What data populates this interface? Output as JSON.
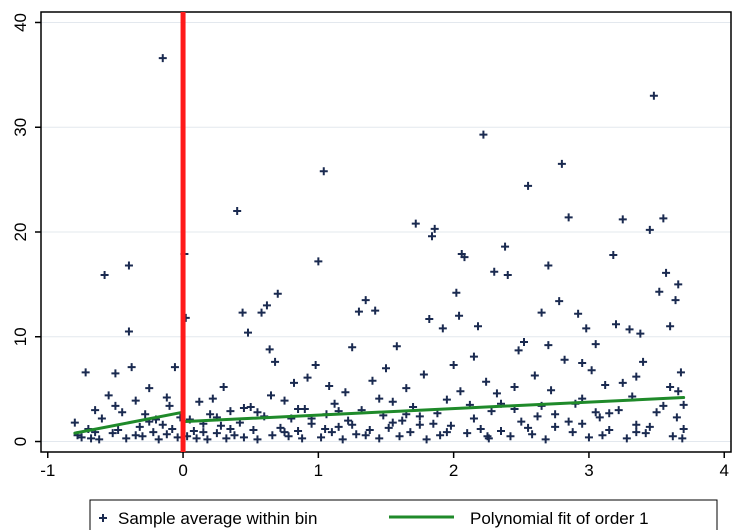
{
  "chart_data": {
    "type": "scatter",
    "title": "",
    "xlabel": "",
    "ylabel": "",
    "xlim": [
      -1.05,
      4.05
    ],
    "ylim": [
      -1,
      41
    ],
    "xticks": [
      -1,
      0,
      1,
      2,
      3,
      4
    ],
    "yticks": [
      0,
      10,
      20,
      30,
      40
    ],
    "xtick_labels": [
      "-1",
      "0",
      "1",
      "2",
      "3",
      "4"
    ],
    "ytick_labels": [
      "0",
      "10",
      "20",
      "30",
      "40"
    ],
    "grid": "horizontal",
    "cutoff": {
      "x": 0,
      "color": "#ff1a1a"
    },
    "series": [
      {
        "name": "Sample average within bin",
        "kind": "scatter",
        "marker": "plus",
        "color": "#1a2a50",
        "points": [
          [
            -0.8,
            1.8
          ],
          [
            -0.78,
            0.6
          ],
          [
            -0.75,
            0.4
          ],
          [
            -0.72,
            6.6
          ],
          [
            -0.7,
            1.2
          ],
          [
            -0.68,
            0.3
          ],
          [
            -0.65,
            3.0
          ],
          [
            -0.62,
            0.2
          ],
          [
            -0.6,
            2.2
          ],
          [
            -0.58,
            15.9
          ],
          [
            -0.55,
            4.4
          ],
          [
            -0.52,
            0.8
          ],
          [
            -0.5,
            6.5
          ],
          [
            -0.48,
            1.1
          ],
          [
            -0.45,
            2.8
          ],
          [
            -0.42,
            0.3
          ],
          [
            -0.4,
            16.8
          ],
          [
            -0.38,
            7.1
          ],
          [
            -0.35,
            3.9
          ],
          [
            -0.32,
            1.4
          ],
          [
            -0.4,
            10.5
          ],
          [
            -0.3,
            0.5
          ],
          [
            -0.28,
            2.6
          ],
          [
            -0.25,
            5.1
          ],
          [
            -0.22,
            0.9
          ],
          [
            -0.2,
            2.1
          ],
          [
            -0.18,
            0.2
          ],
          [
            -0.15,
            1.6
          ],
          [
            -0.12,
            0.7
          ],
          [
            -0.1,
            3.4
          ],
          [
            -0.08,
            1.2
          ],
          [
            -0.06,
            7.1
          ],
          [
            -0.04,
            0.4
          ],
          [
            -0.02,
            2.3
          ],
          [
            -0.15,
            36.6
          ],
          [
            -0.5,
            3.4
          ],
          [
            -0.65,
            0.9
          ],
          [
            -0.35,
            0.6
          ],
          [
            -0.25,
            1.9
          ],
          [
            -0.12,
            4.2
          ],
          [
            0.01,
            17.9
          ],
          [
            0.02,
            11.8
          ],
          [
            0.03,
            0.5
          ],
          [
            0.05,
            2.1
          ],
          [
            0.08,
            1.0
          ],
          [
            0.1,
            0.3
          ],
          [
            0.12,
            3.8
          ],
          [
            0.15,
            1.7
          ],
          [
            0.18,
            0.2
          ],
          [
            0.2,
            2.6
          ],
          [
            0.22,
            4.1
          ],
          [
            0.25,
            0.8
          ],
          [
            0.28,
            1.5
          ],
          [
            0.3,
            5.2
          ],
          [
            0.32,
            0.3
          ],
          [
            0.35,
            2.9
          ],
          [
            0.38,
            0.6
          ],
          [
            0.4,
            22.0
          ],
          [
            0.42,
            1.8
          ],
          [
            0.44,
            12.3
          ],
          [
            0.45,
            0.4
          ],
          [
            0.48,
            10.4
          ],
          [
            0.5,
            3.3
          ],
          [
            0.52,
            1.1
          ],
          [
            0.55,
            0.2
          ],
          [
            0.58,
            12.3
          ],
          [
            0.6,
            2.4
          ],
          [
            0.62,
            13.0
          ],
          [
            0.64,
            8.8
          ],
          [
            0.66,
            0.6
          ],
          [
            0.68,
            7.6
          ],
          [
            0.7,
            14.1
          ],
          [
            0.72,
            1.3
          ],
          [
            0.75,
            3.9
          ],
          [
            0.78,
            0.5
          ],
          [
            0.8,
            2.2
          ],
          [
            0.82,
            5.6
          ],
          [
            0.85,
            1.0
          ],
          [
            0.88,
            0.3
          ],
          [
            0.9,
            3.1
          ],
          [
            0.92,
            6.1
          ],
          [
            0.95,
            1.7
          ],
          [
            0.98,
            7.3
          ],
          [
            1.0,
            17.2
          ],
          [
            1.02,
            0.4
          ],
          [
            1.04,
            25.8
          ],
          [
            1.06,
            2.6
          ],
          [
            1.08,
            5.3
          ],
          [
            1.1,
            0.9
          ],
          [
            1.12,
            3.6
          ],
          [
            1.15,
            1.4
          ],
          [
            1.18,
            0.2
          ],
          [
            1.2,
            4.7
          ],
          [
            1.22,
            2.0
          ],
          [
            1.25,
            9.0
          ],
          [
            1.28,
            0.7
          ],
          [
            1.3,
            12.4
          ],
          [
            1.32,
            3.0
          ],
          [
            1.35,
            13.5
          ],
          [
            1.38,
            1.1
          ],
          [
            1.4,
            5.8
          ],
          [
            1.42,
            12.5
          ],
          [
            1.45,
            0.3
          ],
          [
            1.48,
            2.5
          ],
          [
            1.5,
            7.0
          ],
          [
            1.52,
            1.3
          ],
          [
            1.55,
            3.8
          ],
          [
            1.58,
            9.1
          ],
          [
            1.6,
            0.5
          ],
          [
            1.62,
            2.0
          ],
          [
            1.65,
            5.1
          ],
          [
            1.68,
            0.9
          ],
          [
            1.7,
            3.3
          ],
          [
            1.72,
            20.8
          ],
          [
            1.75,
            1.6
          ],
          [
            1.78,
            6.4
          ],
          [
            1.8,
            0.2
          ],
          [
            1.82,
            11.7
          ],
          [
            1.84,
            19.6
          ],
          [
            1.86,
            20.3
          ],
          [
            1.88,
            2.7
          ],
          [
            1.9,
            0.6
          ],
          [
            1.92,
            10.8
          ],
          [
            1.95,
            4.0
          ],
          [
            1.98,
            1.5
          ],
          [
            2.0,
            7.3
          ],
          [
            2.02,
            14.2
          ],
          [
            2.04,
            12.0
          ],
          [
            2.06,
            17.9
          ],
          [
            2.08,
            17.6
          ],
          [
            2.1,
            0.8
          ],
          [
            2.12,
            3.5
          ],
          [
            2.15,
            8.1
          ],
          [
            2.18,
            11.0
          ],
          [
            2.2,
            1.2
          ],
          [
            2.22,
            29.3
          ],
          [
            2.24,
            5.7
          ],
          [
            2.26,
            0.3
          ],
          [
            2.28,
            2.9
          ],
          [
            2.3,
            16.2
          ],
          [
            2.32,
            4.6
          ],
          [
            2.35,
            1.0
          ],
          [
            2.38,
            18.6
          ],
          [
            2.4,
            15.9
          ],
          [
            2.42,
            0.5
          ],
          [
            2.45,
            3.1
          ],
          [
            2.48,
            8.7
          ],
          [
            2.5,
            1.9
          ],
          [
            2.52,
            9.5
          ],
          [
            2.55,
            24.4
          ],
          [
            2.58,
            0.7
          ],
          [
            2.6,
            6.3
          ],
          [
            2.62,
            2.4
          ],
          [
            2.65,
            12.3
          ],
          [
            2.68,
            0.2
          ],
          [
            2.7,
            16.8
          ],
          [
            2.72,
            4.9
          ],
          [
            2.75,
            1.4
          ],
          [
            2.78,
            13.4
          ],
          [
            2.8,
            26.5
          ],
          [
            2.82,
            7.8
          ],
          [
            2.85,
            21.4
          ],
          [
            2.88,
            0.9
          ],
          [
            2.9,
            3.6
          ],
          [
            2.92,
            12.2
          ],
          [
            2.95,
            1.7
          ],
          [
            2.98,
            10.8
          ],
          [
            3.0,
            0.4
          ],
          [
            3.02,
            6.8
          ],
          [
            3.05,
            9.3
          ],
          [
            3.08,
            2.3
          ],
          [
            3.1,
            0.6
          ],
          [
            3.12,
            5.4
          ],
          [
            3.15,
            1.1
          ],
          [
            3.18,
            17.8
          ],
          [
            3.2,
            11.2
          ],
          [
            3.22,
            3.0
          ],
          [
            3.25,
            21.2
          ],
          [
            3.28,
            0.3
          ],
          [
            3.3,
            10.7
          ],
          [
            3.32,
            4.3
          ],
          [
            3.35,
            1.6
          ],
          [
            3.38,
            10.3
          ],
          [
            3.4,
            7.6
          ],
          [
            3.42,
            0.8
          ],
          [
            3.45,
            20.2
          ],
          [
            3.48,
            33.0
          ],
          [
            3.5,
            2.8
          ],
          [
            3.52,
            14.3
          ],
          [
            3.55,
            21.3
          ],
          [
            3.57,
            16.1
          ],
          [
            3.6,
            11.0
          ],
          [
            3.62,
            0.5
          ],
          [
            3.64,
            13.5
          ],
          [
            3.66,
            15.0
          ],
          [
            3.68,
            6.6
          ],
          [
            3.7,
            3.5
          ],
          [
            3.7,
            1.2
          ],
          [
            3.69,
            0.3
          ],
          [
            3.66,
            4.8
          ],
          [
            0.15,
            0.9
          ],
          [
            0.35,
            1.2
          ],
          [
            0.55,
            2.8
          ],
          [
            0.75,
            0.9
          ],
          [
            0.95,
            2.2
          ],
          [
            1.15,
            2.9
          ],
          [
            1.35,
            0.6
          ],
          [
            1.55,
            1.8
          ],
          [
            1.75,
            2.4
          ],
          [
            1.95,
            0.9
          ],
          [
            2.15,
            2.2
          ],
          [
            2.35,
            3.6
          ],
          [
            2.55,
            1.3
          ],
          [
            2.75,
            2.6
          ],
          [
            2.95,
            4.1
          ],
          [
            3.15,
            2.7
          ],
          [
            3.35,
            0.9
          ],
          [
            3.55,
            3.4
          ],
          [
            3.65,
            2.3
          ],
          [
            2.05,
            4.8
          ],
          [
            1.25,
            1.6
          ],
          [
            0.45,
            3.2
          ],
          [
            0.25,
            2.3
          ],
          [
            0.65,
            4.4
          ],
          [
            0.85,
            3.1
          ],
          [
            1.05,
            1.2
          ],
          [
            1.45,
            4.1
          ],
          [
            1.65,
            2.6
          ],
          [
            1.85,
            1.7
          ],
          [
            2.25,
            0.5
          ],
          [
            2.45,
            5.2
          ],
          [
            2.65,
            3.4
          ],
          [
            2.85,
            1.9
          ],
          [
            3.05,
            2.8
          ],
          [
            3.25,
            5.6
          ],
          [
            3.45,
            1.4
          ],
          [
            3.6,
            5.2
          ],
          [
            2.95,
            7.5
          ],
          [
            2.7,
            9.2
          ],
          [
            3.35,
            6.2
          ]
        ]
      },
      {
        "name": "Polynomial fit of order 1",
        "kind": "line",
        "color": "#1f8a2a",
        "segments": [
          [
            [
              -0.8,
              0.8
            ],
            [
              0.0,
              2.8
            ]
          ],
          [
            [
              0.0,
              1.9
            ],
            [
              3.7,
              4.2
            ]
          ]
        ]
      }
    ],
    "legend": {
      "position": "bottom",
      "items": [
        {
          "label": "Sample average within bin",
          "symbol": "plus"
        },
        {
          "label": "Polynomial fit of order 1",
          "symbol": "line"
        }
      ]
    }
  }
}
